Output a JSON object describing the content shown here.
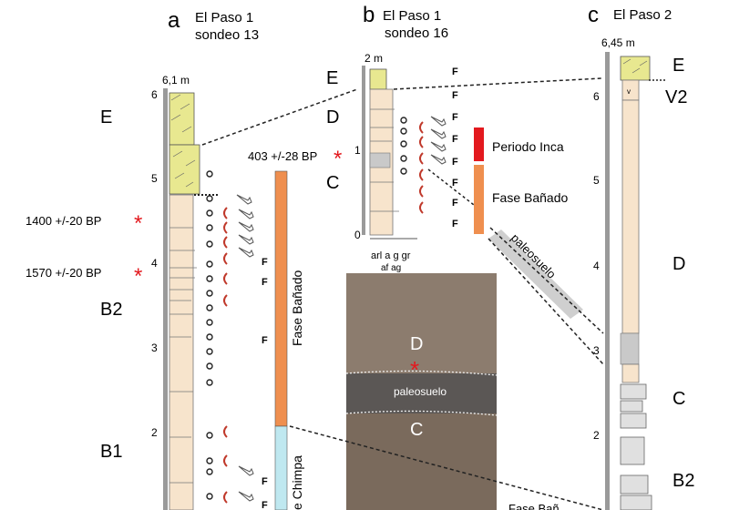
{
  "columns": [
    {
      "letter": "a",
      "title": "El Paso 1",
      "subtitle": "sondeo 13",
      "top_depth": "6,1 m"
    },
    {
      "letter": "b",
      "title": "El Paso 1",
      "subtitle": "sondeo 16",
      "top_depth": "2 m"
    },
    {
      "letter": "c",
      "title": "El Paso 2",
      "subtitle": "",
      "top_depth": "6,45 m"
    }
  ],
  "scales": {
    "a": [
      "6",
      "5",
      "4",
      "3",
      "2"
    ],
    "b": [
      "1",
      "0"
    ],
    "c": [
      "6",
      "5",
      "4",
      "3",
      "2"
    ]
  },
  "units": {
    "a": [
      "E",
      "B2",
      "B1"
    ],
    "b": [
      "E",
      "D",
      "C"
    ],
    "c": [
      "E",
      "V2",
      "D",
      "C",
      "B2"
    ]
  },
  "dates": {
    "d1": "1400 +/-20 BP",
    "d2": "1570 +/-20 BP",
    "d3": "403 +/-28 BP"
  },
  "fossil_mark": "F",
  "legend": {
    "periodo_inca": "Periodo Inca",
    "fase_banado": "Fase Bañado",
    "paleosuelo_band": "paleosuelo",
    "vertical_fase_banado": "Fase Bañado",
    "vertical_chimpa": "e Chimpa",
    "cut_label": "Fase Bañ"
  },
  "grain_scale": {
    "row1": "arl a g gr",
    "row2": "af ag"
  },
  "photo": {
    "unit_top": "D",
    "paleosuelo": "paleosuelo",
    "unit_bottom": "C"
  },
  "colors": {
    "inca_red": "#e3191e",
    "banado_orange": "#ef8f4f",
    "chimpa_blue": "#bfe8f0",
    "sand": "#f7e4cc",
    "sand_yellow": "#e8e890",
    "asterisk": "#e3191e",
    "crescent": "#c0392b"
  }
}
